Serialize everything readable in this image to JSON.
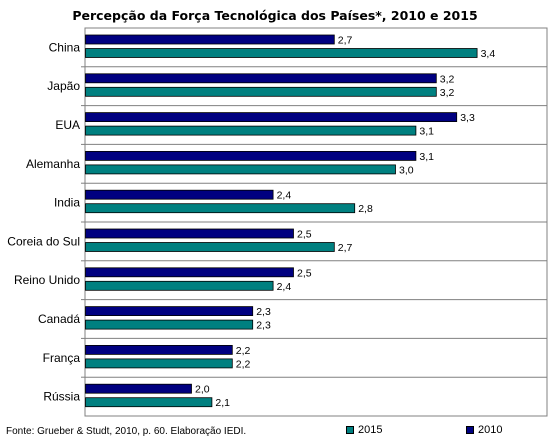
{
  "chart_data": {
    "type": "bar",
    "orientation": "horizontal",
    "title": "Percepção da Força Tecnológica dos Países*, 2010 e 2015",
    "categories": [
      "China",
      "Japão",
      "EUA",
      "Alemanha",
      "India",
      "Coreia do Sul",
      "Reino Unido",
      "Canadá",
      "França",
      "Rússia"
    ],
    "series": [
      {
        "name": "2010",
        "color": "#000080",
        "values": [
          2.7,
          3.2,
          3.3,
          3.1,
          2.4,
          2.5,
          2.5,
          2.3,
          2.2,
          2.0
        ],
        "labels": [
          "2,7",
          "3,2",
          "3,3",
          "3,1",
          "2,4",
          "2,5",
          "2,5",
          "2,3",
          "2,2",
          "2,0"
        ]
      },
      {
        "name": "2015",
        "color": "#008080",
        "values": [
          3.4,
          3.2,
          3.1,
          3.0,
          2.8,
          2.7,
          2.4,
          2.3,
          2.2,
          2.1
        ],
        "labels": [
          "3,4",
          "3,2",
          "3,1",
          "3,0",
          "2,8",
          "2,7",
          "2,4",
          "2,3",
          "2,2",
          "2,1"
        ]
      }
    ],
    "xlim": [
      1.5,
      3.5
    ],
    "grid": true,
    "legend_position": "bottom"
  },
  "source_note": "Fonte: Grueber & Studt, 2010, p. 60. Elaboração IEDI."
}
